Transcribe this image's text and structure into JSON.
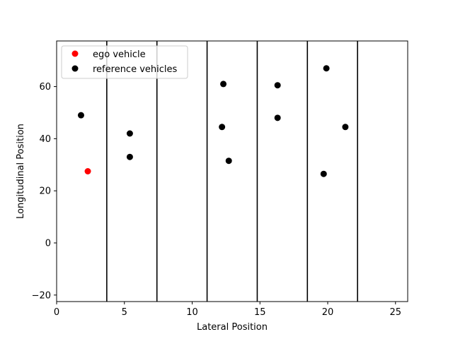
{
  "chart_data": {
    "type": "scatter",
    "title": "",
    "xlabel": "Lateral Position",
    "ylabel": "Longitudinal Position",
    "xlim": [
      0,
      25.9
    ],
    "ylim": [
      -22.5,
      77.5
    ],
    "xticks": [
      0,
      5,
      10,
      15,
      20,
      25
    ],
    "yticks": [
      -20,
      0,
      20,
      40,
      60
    ],
    "xtick_labels": [
      "0",
      "5",
      "10",
      "15",
      "20",
      "25"
    ],
    "ytick_labels": [
      "−20",
      "0",
      "20",
      "40",
      "60"
    ],
    "grid": false,
    "legend_position": "top-left",
    "lane_lines": [
      3.7,
      7.4,
      11.1,
      14.8,
      18.5,
      22.2
    ],
    "series": [
      {
        "name": "ego vehicle",
        "color": "#ff0000",
        "points": [
          [
            2.3,
            27.5
          ]
        ]
      },
      {
        "name": "reference vehicles",
        "color": "#000000",
        "points": [
          [
            1.8,
            49.0
          ],
          [
            5.4,
            42.0
          ],
          [
            5.4,
            33.0
          ],
          [
            12.3,
            61.0
          ],
          [
            12.2,
            44.5
          ],
          [
            12.7,
            31.5
          ],
          [
            16.3,
            60.5
          ],
          [
            16.3,
            48.0
          ],
          [
            19.9,
            67.0
          ],
          [
            21.3,
            44.5
          ],
          [
            19.7,
            26.5
          ]
        ]
      }
    ]
  }
}
